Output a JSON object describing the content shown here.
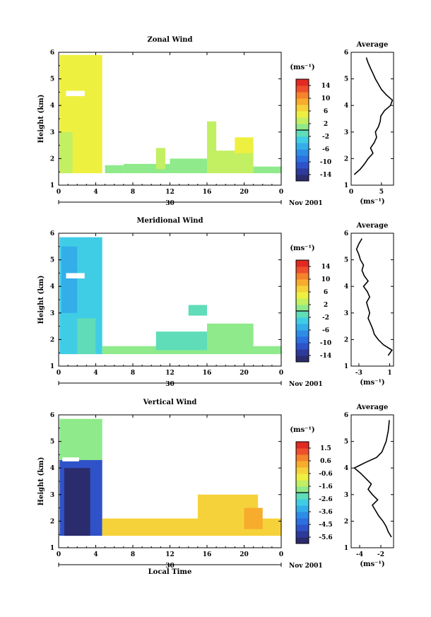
{
  "chart_data": [
    {
      "type": "heatmap",
      "title": "Zonal Wind",
      "ylabel": "Height (km)",
      "xlabel": "",
      "x_ticks": [
        "0",
        "4",
        "8",
        "12",
        "16",
        "20",
        "0"
      ],
      "y_ticks": [
        "1",
        "2",
        "3",
        "4",
        "5",
        "6"
      ],
      "xlim": [
        0,
        24
      ],
      "ylim": [
        1,
        6
      ],
      "date_label": "30",
      "month_label": "Nov 2001",
      "colorbar": {
        "unit": "(ms⁻¹)",
        "ticks": [
          "14",
          "10",
          "6",
          "2",
          "-2",
          "-6",
          "-10",
          "-14"
        ],
        "range": [
          -16,
          16
        ]
      },
      "regions": [
        {
          "x0": 0.1,
          "x1": 4.7,
          "y0": 1.45,
          "y1": 5.9,
          "value": 5
        },
        {
          "x0": 0.1,
          "x1": 1.5,
          "y0": 1.45,
          "y1": 3.0,
          "value": 3
        },
        {
          "x0": 5.0,
          "x1": 7.0,
          "y0": 1.45,
          "y1": 1.75,
          "value": 1
        },
        {
          "x0": 7.0,
          "x1": 12.0,
          "y0": 1.45,
          "y1": 1.8,
          "value": 0
        },
        {
          "x0": 10.5,
          "x1": 11.5,
          "y0": 1.6,
          "y1": 2.4,
          "value": 2
        },
        {
          "x0": 12.0,
          "x1": 16.0,
          "y0": 1.45,
          "y1": 2.0,
          "value": 1
        },
        {
          "x0": 16.0,
          "x1": 21.0,
          "y0": 1.45,
          "y1": 2.3,
          "value": 2
        },
        {
          "x0": 16.0,
          "x1": 17.0,
          "y0": 2.0,
          "y1": 3.4,
          "value": 3
        },
        {
          "x0": 19.0,
          "x1": 21.0,
          "y0": 2.2,
          "y1": 2.8,
          "value": 5
        },
        {
          "x0": 21.0,
          "x1": 24.0,
          "y0": 1.45,
          "y1": 1.7,
          "value": 0
        }
      ],
      "gaps": [
        {
          "x0": 0.8,
          "x1": 2.8,
          "y0": 4.35,
          "y1": 4.55
        }
      ],
      "average_profile": {
        "title": "Average",
        "xlabel": "(ms⁻¹)",
        "x_ticks": [
          "0",
          "5"
        ],
        "xlim": [
          0,
          7
        ],
        "height": [
          1.4,
          1.6,
          1.8,
          2.0,
          2.2,
          2.4,
          2.6,
          2.8,
          3.0,
          3.2,
          3.4,
          3.6,
          3.8,
          4.0,
          4.2,
          4.4,
          4.6,
          4.8,
          5.0,
          5.2,
          5.4,
          5.6,
          5.8
        ],
        "values": [
          0.5,
          1.5,
          2.2,
          2.8,
          3.6,
          3.2,
          3.8,
          4.2,
          4.0,
          4.5,
          4.8,
          4.9,
          5.5,
          6.5,
          6.8,
          5.8,
          5.0,
          4.5,
          4.0,
          3.6,
          3.2,
          2.8,
          2.5
        ]
      }
    },
    {
      "type": "heatmap",
      "title": "Meridional Wind",
      "ylabel": "Height (km)",
      "xlabel": "",
      "x_ticks": [
        "0",
        "4",
        "8",
        "12",
        "16",
        "20",
        "0"
      ],
      "y_ticks": [
        "1",
        "2",
        "3",
        "4",
        "5",
        "6"
      ],
      "xlim": [
        0,
        24
      ],
      "ylim": [
        1,
        6
      ],
      "date_label": "30",
      "month_label": "Nov 2001",
      "colorbar": {
        "unit": "(ms⁻¹)",
        "ticks": [
          "14",
          "10",
          "6",
          "2",
          "-2",
          "-6",
          "-10",
          "-14"
        ],
        "range": [
          -16,
          16
        ]
      },
      "regions": [
        {
          "x0": 0.1,
          "x1": 4.7,
          "y0": 1.45,
          "y1": 5.85,
          "value": -3
        },
        {
          "x0": 0.3,
          "x1": 2.0,
          "y0": 3.0,
          "y1": 5.5,
          "value": -6
        },
        {
          "x0": 2.0,
          "x1": 4.0,
          "y0": 1.45,
          "y1": 2.8,
          "value": -1
        },
        {
          "x0": 4.7,
          "x1": 24.0,
          "y0": 1.45,
          "y1": 1.75,
          "value": 0
        },
        {
          "x0": 10.5,
          "x1": 16.0,
          "y0": 1.6,
          "y1": 2.3,
          "value": -1
        },
        {
          "x0": 16.0,
          "x1": 21.0,
          "y0": 1.6,
          "y1": 2.6,
          "value": 1
        },
        {
          "x0": 14.0,
          "x1": 16.0,
          "y0": 2.9,
          "y1": 3.3,
          "value": -2
        }
      ],
      "gaps": [
        {
          "x0": 0.8,
          "x1": 2.8,
          "y0": 4.3,
          "y1": 4.5
        }
      ],
      "average_profile": {
        "title": "Average",
        "xlabel": "(ms⁻¹)",
        "x_ticks": [
          "-3",
          "1"
        ],
        "xlim": [
          -4,
          1.5
        ],
        "height": [
          1.4,
          1.6,
          1.8,
          2.0,
          2.2,
          2.4,
          2.6,
          2.8,
          3.0,
          3.2,
          3.4,
          3.6,
          3.8,
          4.0,
          4.2,
          4.4,
          4.6,
          4.8,
          5.0,
          5.2,
          5.4,
          5.6,
          5.8
        ],
        "values": [
          0.8,
          1.3,
          0.2,
          -0.5,
          -1.0,
          -1.2,
          -1.5,
          -1.8,
          -1.6,
          -1.8,
          -2.0,
          -1.6,
          -1.9,
          -2.4,
          -1.8,
          -2.3,
          -2.6,
          -2.4,
          -2.8,
          -3.0,
          -3.3,
          -3.0,
          -2.6
        ]
      }
    },
    {
      "type": "heatmap",
      "title": "Vertical Wind",
      "ylabel": "Height (km)",
      "xlabel": "Local Time",
      "x_ticks": [
        "0",
        "4",
        "8",
        "12",
        "16",
        "20",
        "0"
      ],
      "y_ticks": [
        "1",
        "2",
        "3",
        "4",
        "5",
        "6"
      ],
      "xlim": [
        0,
        24
      ],
      "ylim": [
        1,
        6
      ],
      "date_label": "30",
      "month_label": "Nov 2001",
      "colorbar": {
        "unit": "(ms⁻¹)",
        "ticks": [
          "1.5",
          "0.6",
          "-0.6",
          "-1.6",
          "-2.6",
          "-3.6",
          "-4.5",
          "-5.6"
        ],
        "range": [
          -6,
          2
        ]
      },
      "regions": [
        {
          "x0": 0.1,
          "x1": 4.7,
          "y0": 4.3,
          "y1": 5.85,
          "value": -1.6
        },
        {
          "x0": 0.1,
          "x1": 4.7,
          "y0": 1.45,
          "y1": 4.3,
          "value": -4.8
        },
        {
          "x0": 0.6,
          "x1": 3.4,
          "y0": 1.45,
          "y1": 4.0,
          "value": -5.8
        },
        {
          "x0": 4.7,
          "x1": 24.0,
          "y0": 1.45,
          "y1": 2.1,
          "value": -0.3
        },
        {
          "x0": 15.0,
          "x1": 21.5,
          "y0": 1.6,
          "y1": 3.0,
          "value": -0.1
        },
        {
          "x0": 20.0,
          "x1": 22.0,
          "y0": 1.7,
          "y1": 2.5,
          "value": 0.3
        }
      ],
      "gaps": [
        {
          "x0": 0.4,
          "x1": 2.2,
          "y0": 4.25,
          "y1": 4.4
        }
      ],
      "average_profile": {
        "title": "Average",
        "xlabel": "(ms⁻¹)",
        "x_ticks": [
          "-4",
          "-2"
        ],
        "xlim": [
          -4.8,
          -0.8
        ],
        "height": [
          1.4,
          1.6,
          1.8,
          2.0,
          2.2,
          2.4,
          2.6,
          2.8,
          3.0,
          3.2,
          3.4,
          3.6,
          3.8,
          4.0,
          4.2,
          4.4,
          4.6,
          4.8,
          5.0,
          5.2,
          5.4,
          5.6,
          5.8
        ],
        "values": [
          -1.0,
          -1.3,
          -1.5,
          -1.8,
          -2.2,
          -2.5,
          -2.8,
          -2.3,
          -2.8,
          -3.2,
          -2.9,
          -3.4,
          -3.9,
          -4.5,
          -3.5,
          -2.4,
          -1.9,
          -1.7,
          -1.5,
          -1.4,
          -1.3,
          -1.25,
          -1.2
        ]
      }
    }
  ]
}
